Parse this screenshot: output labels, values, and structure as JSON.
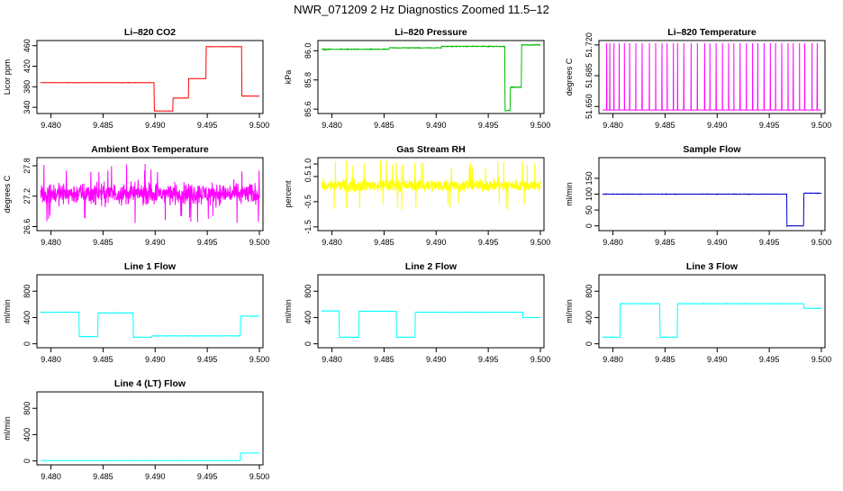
{
  "figure": {
    "title": "NWR_071209  2 Hz Diagnostics Zoomed 11.5–12"
  },
  "chart_data": [
    {
      "id": "co2",
      "type": "line",
      "title": "Li–820 CO2",
      "ylabel": "Licor ppm",
      "color": "#ff0000",
      "xlim": [
        9.479,
        9.5
      ],
      "ylim": [
        328,
        470
      ],
      "xticks": [
        9.48,
        9.485,
        9.49,
        9.495,
        9.5
      ],
      "xtick_labels": [
        "9.480",
        "9.485",
        "9.490",
        "9.495",
        "9.500"
      ],
      "yticks": [
        340,
        380,
        420,
        460
      ],
      "ytick_labels": [
        "340",
        "380",
        "420",
        "460"
      ],
      "noise": 0.4,
      "segments": [
        {
          "x0": 9.479,
          "x1": 9.4899,
          "y": 388
        },
        {
          "x0": 9.4899,
          "x1": 9.4917,
          "y": 333
        },
        {
          "x0": 9.4917,
          "x1": 9.4932,
          "y": 358
        },
        {
          "x0": 9.4932,
          "x1": 9.4949,
          "y": 396
        },
        {
          "x0": 9.4949,
          "x1": 9.4983,
          "y": 458
        },
        {
          "x0": 9.4983,
          "x1": 9.5,
          "y": 362
        }
      ]
    },
    {
      "id": "pressure",
      "type": "line",
      "title": "Li–820 Pressure",
      "ylabel": "kPa",
      "color": "#00bb00",
      "xlim": [
        9.479,
        9.5
      ],
      "ylim": [
        85.57,
        86.07
      ],
      "xticks": [
        9.48,
        9.485,
        9.49,
        9.495,
        9.5
      ],
      "xtick_labels": [
        "9.480",
        "9.485",
        "9.490",
        "9.495",
        "9.500"
      ],
      "yticks": [
        85.6,
        85.8,
        86.0
      ],
      "ytick_labels": [
        "85.6",
        "85.8",
        "86.0"
      ],
      "noise": 0.004,
      "segments": [
        {
          "x0": 9.479,
          "x1": 9.4855,
          "y": 86.01
        },
        {
          "x0": 9.4855,
          "x1": 9.4905,
          "y": 86.02
        },
        {
          "x0": 9.4905,
          "x1": 9.4966,
          "y": 86.03
        },
        {
          "x0": 9.4966,
          "x1": 9.4971,
          "y": 85.59
        },
        {
          "x0": 9.4971,
          "x1": 9.4982,
          "y": 85.75
        },
        {
          "x0": 9.4982,
          "x1": 9.5,
          "y": 86.04
        }
      ]
    },
    {
      "id": "temperature",
      "type": "line",
      "title": "Li–820 Temperature",
      "ylabel": "degrees C",
      "color": "#ff00ff",
      "xlim": [
        9.479,
        9.5
      ],
      "ylim": [
        51.642,
        51.725
      ],
      "xticks": [
        9.48,
        9.485,
        9.49,
        9.495,
        9.5
      ],
      "xtick_labels": [
        "9.480",
        "9.485",
        "9.490",
        "9.495",
        "9.500"
      ],
      "yticks": [
        51.65,
        51.685,
        51.72
      ],
      "ytick_labels": [
        "51.650",
        "51.685",
        "51.720"
      ],
      "baseline": 51.646,
      "spike_top": 51.722,
      "spikes": [
        9.4794,
        9.4797,
        9.4801,
        9.4806,
        9.4811,
        9.4816,
        9.4822,
        9.4828,
        9.4835,
        9.4841,
        9.4847,
        9.4852,
        9.4858,
        9.4862,
        9.4868,
        9.4875,
        9.4881,
        9.4888,
        9.4893,
        9.4899,
        9.4905,
        9.4911,
        9.4916,
        9.4922,
        9.4928,
        9.4934,
        9.4939,
        9.4945,
        9.4951,
        9.4956,
        9.4962,
        9.4968,
        9.4973,
        9.4979,
        9.4984,
        9.4991,
        9.4996
      ]
    },
    {
      "id": "ambient",
      "type": "line",
      "title": "Ambient Box Temperature",
      "ylabel": "degrees C",
      "color": "#ff00ff",
      "xlim": [
        9.479,
        9.5
      ],
      "ylim": [
        26.52,
        27.96
      ],
      "xticks": [
        9.48,
        9.485,
        9.49,
        9.495,
        9.5
      ],
      "xtick_labels": [
        "9.480",
        "9.485",
        "9.490",
        "9.495",
        "9.500"
      ],
      "yticks": [
        26.6,
        27.2,
        27.8
      ],
      "ytick_labels": [
        "26.6",
        "27.2",
        "27.8"
      ],
      "noise_center": 27.25,
      "noise_amplitude": 0.3,
      "noise_extreme": 0.6
    },
    {
      "id": "rh",
      "type": "line",
      "title": "Gas Stream RH",
      "ylabel": "percent",
      "color": "#ffff00",
      "xlim": [
        9.479,
        9.5
      ],
      "ylim": [
        -1.65,
        1.25
      ],
      "xticks": [
        9.48,
        9.485,
        9.49,
        9.495,
        9.5
      ],
      "xtick_labels": [
        "9.480",
        "9.485",
        "9.490",
        "9.495",
        "9.500"
      ],
      "yticks": [
        -1.5,
        -0.5,
        0.5,
        1.0
      ],
      "ytick_labels": [
        "-1.5",
        "-0.5",
        "0.5",
        "1.0"
      ],
      "noise_center": 0.15,
      "noise_amplitude": 0.35,
      "noise_extreme": 1.0
    },
    {
      "id": "sample",
      "type": "line",
      "title": "Sample Flow",
      "ylabel": "ml/min",
      "color": "#0000cc",
      "xlim": [
        9.479,
        9.5
      ],
      "ylim": [
        -15,
        215
      ],
      "xticks": [
        9.48,
        9.485,
        9.49,
        9.495,
        9.5
      ],
      "xtick_labels": [
        "9.480",
        "9.485",
        "9.490",
        "9.495",
        "9.500"
      ],
      "yticks": [
        0,
        50,
        100,
        150
      ],
      "ytick_labels": [
        "0",
        "50",
        "100",
        "150"
      ],
      "noise": 1.2,
      "segments": [
        {
          "x0": 9.479,
          "x1": 9.4967,
          "y": 100
        },
        {
          "x0": 9.4967,
          "x1": 9.4983,
          "y": 0
        },
        {
          "x0": 9.4983,
          "x1": 9.5,
          "y": 103
        }
      ]
    },
    {
      "id": "line1",
      "type": "line",
      "title": "Line 1 Flow",
      "ylabel": "ml/min",
      "color": "#00ffff",
      "xlim": [
        9.479,
        9.5
      ],
      "ylim": [
        -60,
        1050
      ],
      "xticks": [
        9.48,
        9.485,
        9.49,
        9.495,
        9.5
      ],
      "xtick_labels": [
        "9.480",
        "9.485",
        "9.490",
        "9.495",
        "9.500"
      ],
      "yticks": [
        0,
        400,
        800
      ],
      "ytick_labels": [
        "0",
        "400",
        "800"
      ],
      "noise": 6,
      "segments": [
        {
          "x0": 9.479,
          "x1": 9.4827,
          "y": 480
        },
        {
          "x0": 9.4827,
          "x1": 9.4845,
          "y": 110
        },
        {
          "x0": 9.4845,
          "x1": 9.4879,
          "y": 470
        },
        {
          "x0": 9.4879,
          "x1": 9.4897,
          "y": 100
        },
        {
          "x0": 9.4897,
          "x1": 9.4982,
          "y": 120
        },
        {
          "x0": 9.4982,
          "x1": 9.5,
          "y": 420
        }
      ]
    },
    {
      "id": "line2",
      "type": "line",
      "title": "Line 2 Flow",
      "ylabel": "ml/min",
      "color": "#00ffff",
      "xlim": [
        9.479,
        9.5
      ],
      "ylim": [
        -60,
        1050
      ],
      "xticks": [
        9.48,
        9.485,
        9.49,
        9.495,
        9.5
      ],
      "xtick_labels": [
        "9.480",
        "9.485",
        "9.490",
        "9.495",
        "9.500"
      ],
      "yticks": [
        0,
        400,
        800
      ],
      "ytick_labels": [
        "0",
        "400",
        "800"
      ],
      "noise": 6,
      "segments": [
        {
          "x0": 9.479,
          "x1": 9.4807,
          "y": 500
        },
        {
          "x0": 9.4807,
          "x1": 9.4826,
          "y": 100
        },
        {
          "x0": 9.4826,
          "x1": 9.4862,
          "y": 495
        },
        {
          "x0": 9.4862,
          "x1": 9.488,
          "y": 100
        },
        {
          "x0": 9.488,
          "x1": 9.4983,
          "y": 480
        },
        {
          "x0": 9.4983,
          "x1": 9.5,
          "y": 400
        }
      ]
    },
    {
      "id": "line3",
      "type": "line",
      "title": "Line 3 Flow",
      "ylabel": "ml/min",
      "color": "#00ffff",
      "xlim": [
        9.479,
        9.5
      ],
      "ylim": [
        -60,
        1050
      ],
      "xticks": [
        9.48,
        9.485,
        9.49,
        9.495,
        9.5
      ],
      "xtick_labels": [
        "9.480",
        "9.485",
        "9.490",
        "9.495",
        "9.500"
      ],
      "yticks": [
        0,
        400,
        800
      ],
      "ytick_labels": [
        "0",
        "400",
        "800"
      ],
      "noise": 6,
      "segments": [
        {
          "x0": 9.479,
          "x1": 9.4807,
          "y": 100
        },
        {
          "x0": 9.4807,
          "x1": 9.4845,
          "y": 610
        },
        {
          "x0": 9.4845,
          "x1": 9.4862,
          "y": 100
        },
        {
          "x0": 9.4862,
          "x1": 9.4983,
          "y": 610
        },
        {
          "x0": 9.4983,
          "x1": 9.5,
          "y": 540
        }
      ]
    },
    {
      "id": "line4",
      "type": "line",
      "title": "Line 4 (LT) Flow",
      "ylabel": "ml/min",
      "color": "#00ffff",
      "xlim": [
        9.479,
        9.5
      ],
      "ylim": [
        -60,
        1050
      ],
      "xticks": [
        9.48,
        9.485,
        9.49,
        9.495,
        9.5
      ],
      "xtick_labels": [
        "9.480",
        "9.485",
        "9.490",
        "9.495",
        "9.500"
      ],
      "yticks": [
        0,
        400,
        800
      ],
      "ytick_labels": [
        "0",
        "400",
        "800"
      ],
      "noise": 2,
      "segments": [
        {
          "x0": 9.479,
          "x1": 9.4982,
          "y": 5
        },
        {
          "x0": 9.4982,
          "x1": 9.5,
          "y": 120
        }
      ]
    }
  ]
}
